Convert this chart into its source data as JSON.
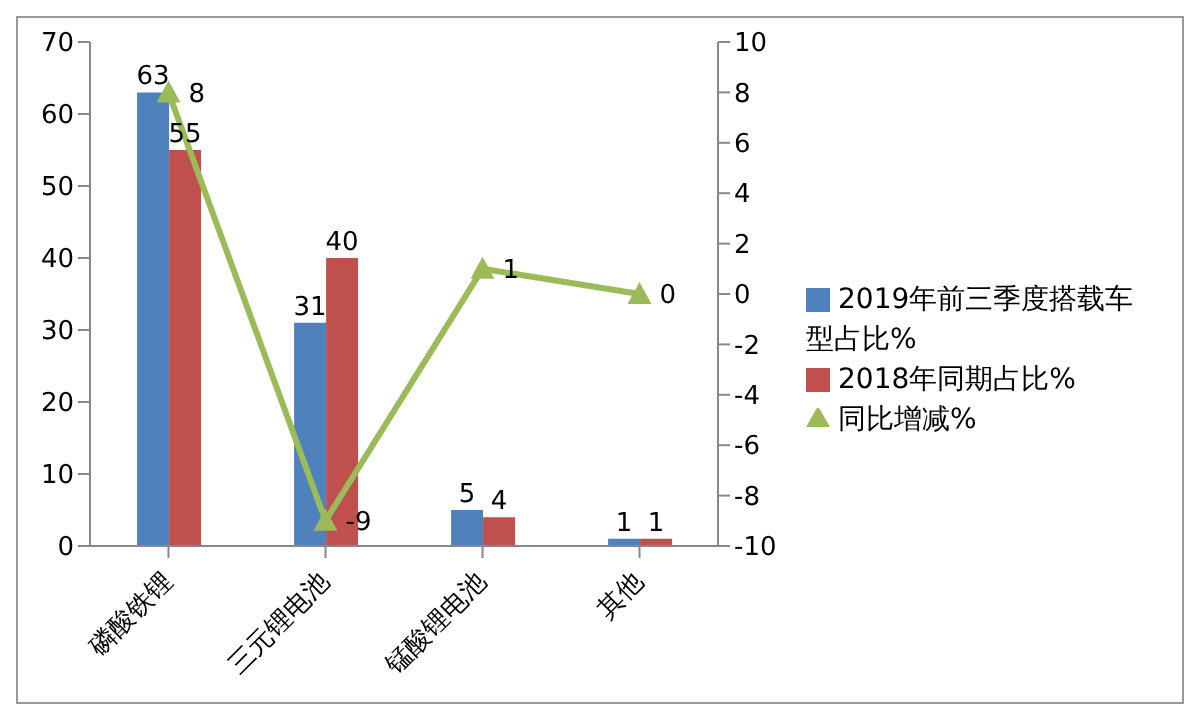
{
  "chart_data": {
    "type": "bar",
    "categories": [
      "磷酸铁锂",
      "三元锂电池",
      "锰酸锂电池",
      "其他"
    ],
    "series": [
      {
        "name": "2019年前三季度搭载车型占比%",
        "color": "#4f81bd",
        "values": [
          63,
          31,
          5,
          1
        ]
      },
      {
        "name": "2018年同期占比%",
        "color": "#c0504d",
        "values": [
          55,
          40,
          4,
          1
        ]
      },
      {
        "name": "同比增减%",
        "color": "#9bbb59",
        "values": [
          8,
          -9,
          1,
          0
        ],
        "type": "line",
        "axis": "y2",
        "marker": "triangle"
      }
    ],
    "ylim": [
      0,
      70
    ],
    "yticks": [
      0,
      10,
      20,
      30,
      40,
      50,
      60,
      70
    ],
    "y2lim": [
      -10,
      10
    ],
    "y2ticks": [
      -10,
      -8,
      -6,
      -4,
      -2,
      0,
      2,
      4,
      6,
      8,
      10
    ],
    "legend": "right",
    "data_labels": true
  }
}
